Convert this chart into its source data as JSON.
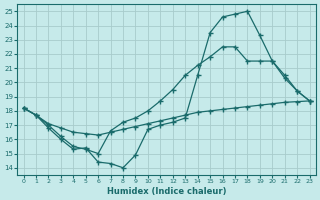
{
  "xlabel": "Humidex (Indice chaleur)",
  "ylabel": "",
  "xlim": [
    -0.5,
    23.5
  ],
  "ylim": [
    13.5,
    25.5
  ],
  "yticks": [
    14,
    15,
    16,
    17,
    18,
    19,
    20,
    21,
    22,
    23,
    24,
    25
  ],
  "xticks": [
    0,
    1,
    2,
    3,
    4,
    5,
    6,
    7,
    8,
    9,
    10,
    11,
    12,
    13,
    14,
    15,
    16,
    17,
    18,
    19,
    20,
    21,
    22,
    23
  ],
  "bg_color": "#c6eaea",
  "line_color": "#1a6b6b",
  "grid_color": "#b8d8d8",
  "line1_x": [
    0,
    1,
    2,
    3,
    4,
    5,
    6,
    7,
    8,
    9,
    10,
    11,
    12,
    13,
    14,
    15,
    16,
    17,
    18,
    19,
    20,
    21,
    22,
    23
  ],
  "line1_y": [
    18.2,
    17.7,
    16.8,
    16.0,
    15.3,
    15.4,
    14.4,
    14.3,
    14.0,
    14.9,
    16.7,
    17.0,
    17.2,
    17.5,
    20.5,
    23.5,
    24.6,
    24.8,
    25.0,
    23.3,
    21.5,
    20.3,
    19.4,
    18.7
  ],
  "line2_x": [
    0,
    1,
    2,
    3,
    4,
    5,
    6,
    7,
    8,
    9,
    10,
    11,
    12,
    13,
    14,
    15,
    16,
    17,
    18,
    19,
    20,
    21,
    22,
    23
  ],
  "line2_y": [
    18.2,
    17.7,
    17.0,
    16.2,
    15.5,
    15.3,
    15.0,
    16.6,
    17.2,
    17.5,
    18.0,
    18.7,
    19.5,
    20.5,
    21.2,
    21.8,
    22.5,
    22.5,
    21.5,
    21.5,
    21.5,
    20.5,
    19.4,
    18.7
  ],
  "line3_x": [
    0,
    1,
    2,
    3,
    4,
    5,
    6,
    7,
    8,
    9,
    10,
    11,
    12,
    13,
    14,
    15,
    16,
    17,
    18,
    19,
    20,
    21,
    22,
    23
  ],
  "line3_y": [
    18.2,
    17.7,
    17.1,
    16.8,
    16.5,
    16.4,
    16.3,
    16.5,
    16.7,
    16.9,
    17.1,
    17.3,
    17.5,
    17.7,
    17.9,
    18.0,
    18.1,
    18.2,
    18.3,
    18.4,
    18.5,
    18.6,
    18.65,
    18.7
  ]
}
